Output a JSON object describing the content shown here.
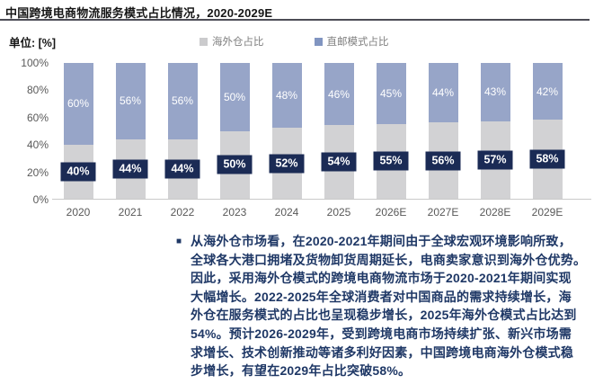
{
  "header": {
    "title": "中国跨境电商物流服务模式占比情况，2020-2029E",
    "unit_label": "单位: [%]"
  },
  "legend": {
    "items": [
      {
        "label": "海外仓占比",
        "color": "#cbcbcd"
      },
      {
        "label": "直邮模式占比",
        "color": "#8195c1"
      }
    ]
  },
  "colors": {
    "overseas_bar_gray": "#d2d2d4",
    "direct_mail_bar_blue": "#97a5c8",
    "value_box_navy": "#1b2b55",
    "body_text_navy": "#1f3866",
    "axis_text_gray": "#595959"
  },
  "chart_data": {
    "type": "bar",
    "stacked": true,
    "title": "中国跨境电商物流服务模式占比情况，2020-2029E",
    "unit": "%",
    "categories": [
      "2020",
      "2021",
      "2022",
      "2023",
      "2024",
      "2025",
      "2026E",
      "2027E",
      "2028E",
      "2029E"
    ],
    "series": [
      {
        "name": "海外仓占比",
        "color": "#d2d2d4",
        "values": [
          40,
          44,
          44,
          50,
          52,
          54,
          55,
          56,
          57,
          58
        ]
      },
      {
        "name": "直邮模式占比",
        "color": "#97a5c8",
        "values": [
          60,
          56,
          56,
          50,
          48,
          46,
          45,
          44,
          43,
          42
        ]
      }
    ],
    "ylim": [
      0,
      100
    ],
    "yticks": [
      "0%",
      "20%",
      "40%",
      "60%",
      "80%",
      "100%"
    ],
    "grid": false,
    "legend_position": "top-center",
    "value_labels": "inside-segments"
  },
  "analysis": {
    "bullet": "■",
    "lines": [
      "从海外仓市场看，在2020-2021年期间由于全球宏观环境影响所致，",
      "全球各大港口拥堵及货物卸货周期延长，电商卖家意识到海外仓优势。",
      "因此，采用海外仓模式的跨境电商物流市场于2020-2021年期间实现",
      "大幅增长。2022-2025年全球消费者对中国商品的需求持续增长，海",
      "外仓在服务模式的占比也呈现稳步增长，2025年海外仓模式占比达到",
      "54%。预计2026-2029年，受到跨境电商市场持续扩张、新兴市场需",
      "求增长、技术创新推动等诸多利好因素，中国跨境电商海外仓模式稳",
      "步增长，有望在2029年占比突破58%。"
    ]
  }
}
